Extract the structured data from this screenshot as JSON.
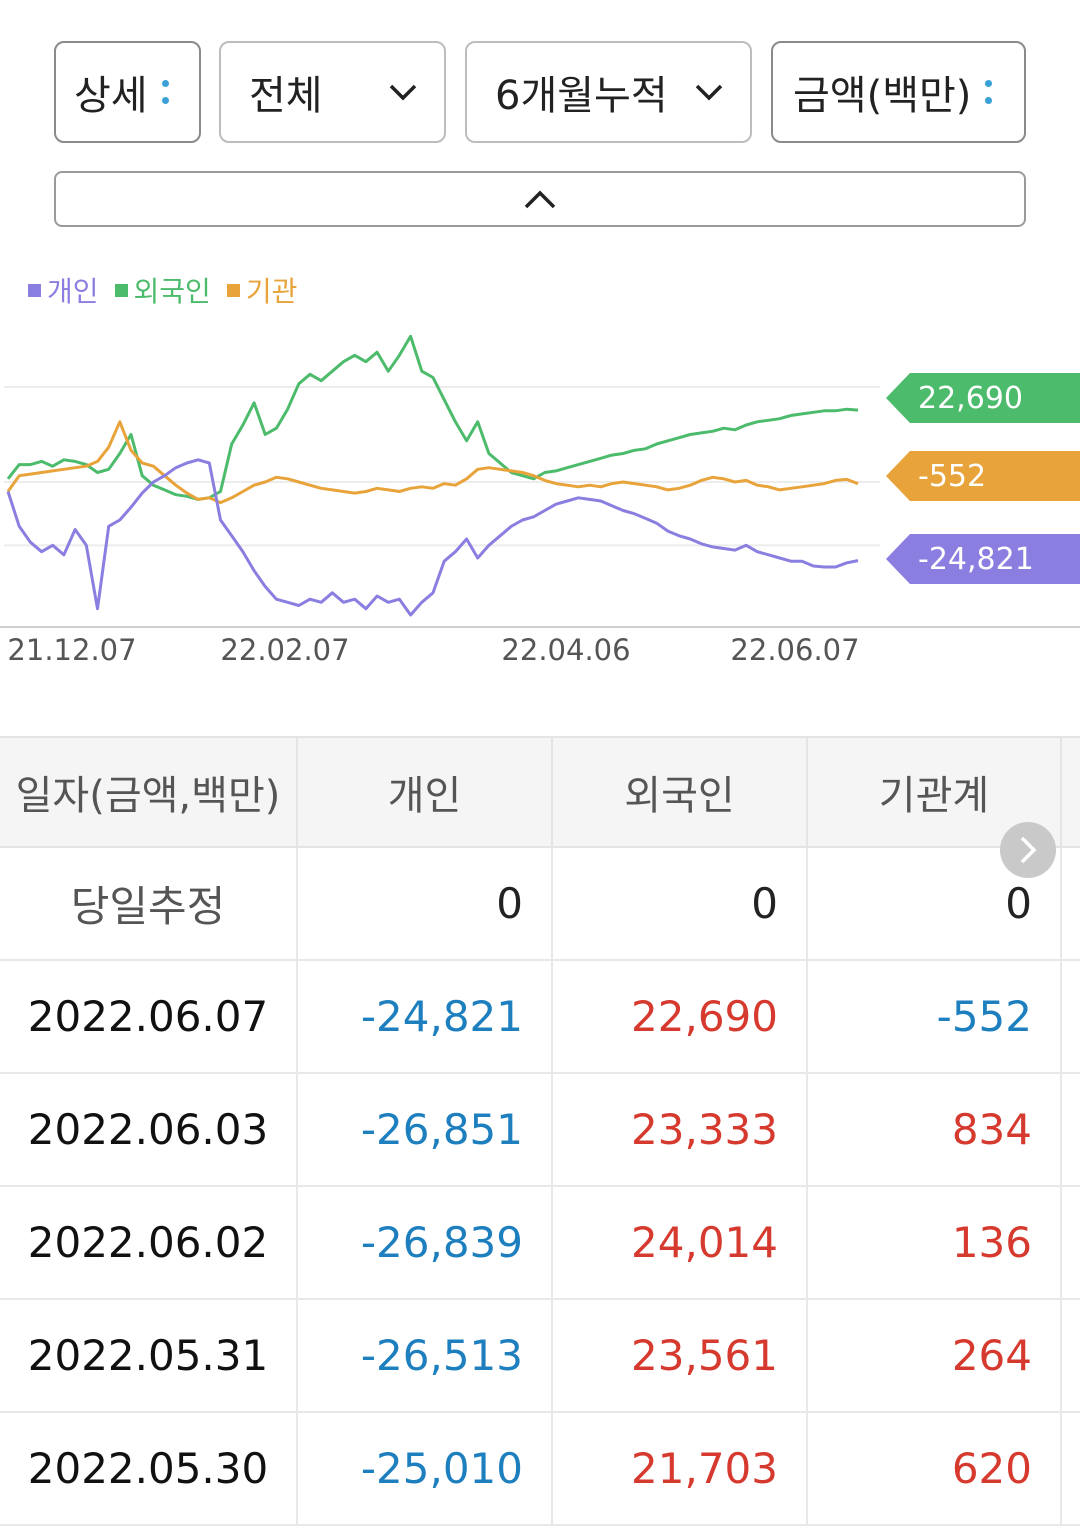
{
  "filters": {
    "view": "상세",
    "market": "전체",
    "period": "6개월누적",
    "unit": "금액(백만)"
  },
  "colors": {
    "individual": "#8a7ee0",
    "foreign": "#4cbb6b",
    "institution": "#e8a33a",
    "negative": "#1e7fbf",
    "positive": "#d63a2f"
  },
  "chart_data": {
    "type": "line",
    "x_ticks": [
      "21.12.07",
      "22.02.07",
      "22.04.06",
      "22.06.07"
    ],
    "series": [
      {
        "name": "외국인",
        "color": "#4cbb6b",
        "end_label": "22,690",
        "values": [
          1000,
          5500,
          5500,
          6500,
          5000,
          7000,
          6500,
          5500,
          3000,
          4000,
          9000,
          15000,
          2000,
          -1000,
          -2500,
          -4000,
          -4500,
          -5500,
          -5000,
          -3000,
          12000,
          18000,
          25000,
          15000,
          17000,
          23000,
          31000,
          34000,
          32000,
          35000,
          38000,
          40000,
          38000,
          41000,
          35000,
          40000,
          46000,
          35000,
          33000,
          26000,
          19000,
          13000,
          19000,
          9000,
          6000,
          3000,
          2000,
          1000,
          3000,
          3500,
          4500,
          5500,
          6500,
          7500,
          8500,
          9000,
          10000,
          10500,
          12000,
          13000,
          14000,
          15000,
          15500,
          16000,
          17000,
          16500,
          18000,
          19000,
          19500,
          20000,
          21000,
          21500,
          22000,
          22500,
          22500,
          23000,
          22690
        ]
      },
      {
        "name": "기관",
        "color": "#e8a33a",
        "end_label": "-552",
        "values": [
          -3000,
          2000,
          2500,
          3000,
          3500,
          4000,
          4500,
          5000,
          6500,
          11000,
          19000,
          10000,
          6000,
          5000,
          2000,
          -1000,
          -3500,
          -5500,
          -5000,
          -6500,
          -5000,
          -3000,
          -1000,
          0,
          1500,
          1000,
          0,
          -1000,
          -2000,
          -2500,
          -3000,
          -3500,
          -3000,
          -2000,
          -2500,
          -3000,
          -2000,
          -1500,
          -2000,
          -500,
          -1000,
          1000,
          4000,
          4500,
          4000,
          3500,
          3000,
          2000,
          500,
          -500,
          -1000,
          -1500,
          -1000,
          -1500,
          -500,
          0,
          -500,
          -1000,
          -1500,
          -2500,
          -2000,
          -1000,
          500,
          1500,
          1000,
          0,
          500,
          -1000,
          -1500,
          -2500,
          -2000,
          -1500,
          -1000,
          -500,
          500,
          834,
          -552
        ]
      },
      {
        "name": "개인",
        "color": "#8a7ee0",
        "end_label": "-24,821",
        "values": [
          -3000,
          -14000,
          -19000,
          -22000,
          -20000,
          -23000,
          -15000,
          -20000,
          -40000,
          -14000,
          -12000,
          -8000,
          -3500,
          0,
          2000,
          4500,
          6000,
          7000,
          6000,
          -12000,
          -17000,
          -22000,
          -28000,
          -33000,
          -37000,
          -38000,
          -39000,
          -37000,
          -38000,
          -35000,
          -38000,
          -37000,
          -40000,
          -36000,
          -38000,
          -37000,
          -42000,
          -38000,
          -35000,
          -25000,
          -22000,
          -18000,
          -24000,
          -20000,
          -17000,
          -14000,
          -12000,
          -11000,
          -9000,
          -7000,
          -6000,
          -5000,
          -5500,
          -6000,
          -7500,
          -9000,
          -10000,
          -11500,
          -13000,
          -15500,
          -17000,
          -18000,
          -19500,
          -20500,
          -21000,
          -21500,
          -20000,
          -22000,
          -23000,
          -24000,
          -25000,
          -25010,
          -26513,
          -26839,
          -26851,
          -25500,
          -24821
        ]
      }
    ],
    "ylim": [
      -42000,
      48000
    ],
    "gridlines": true
  },
  "table": {
    "headers": [
      "일자(금액,백만)",
      "개인",
      "외국인",
      "기관계"
    ],
    "rows": [
      {
        "date": "당일추정",
        "individual": "0",
        "foreign": "0",
        "institution": "0"
      },
      {
        "date": "2022.06.07",
        "individual": "-24,821",
        "foreign": "22,690",
        "institution": "-552"
      },
      {
        "date": "2022.06.03",
        "individual": "-26,851",
        "foreign": "23,333",
        "institution": "834"
      },
      {
        "date": "2022.06.02",
        "individual": "-26,839",
        "foreign": "24,014",
        "institution": "136"
      },
      {
        "date": "2022.05.31",
        "individual": "-26,513",
        "foreign": "23,561",
        "institution": "264"
      },
      {
        "date": "2022.05.30",
        "individual": "-25,010",
        "foreign": "21,703",
        "institution": "620"
      }
    ]
  }
}
